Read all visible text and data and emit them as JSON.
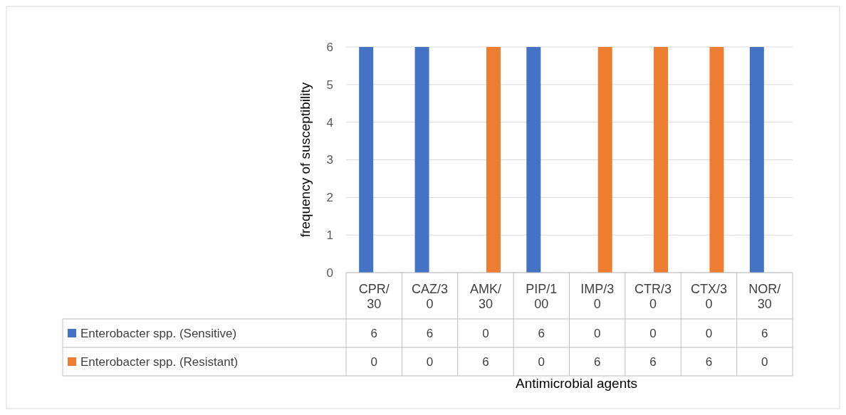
{
  "chart_data": {
    "type": "bar",
    "xlabel": "Antimicrobial agents",
    "ylabel": "frequency of susceptibility",
    "categories": [
      "CPR/30",
      "CAZ/30",
      "AMK/30",
      "PIP/100",
      "IMP/30",
      "CTR/30",
      "CTX/30",
      "NOR/30"
    ],
    "series": [
      {
        "name": "Enterobacter spp. (Sensitive)",
        "color": "#4472c4",
        "values": [
          6,
          6,
          0,
          6,
          0,
          0,
          0,
          6
        ]
      },
      {
        "name": "Enterobacter spp. (Resistant)",
        "color": "#ed7d31",
        "values": [
          0,
          0,
          6,
          0,
          6,
          6,
          6,
          0
        ]
      }
    ],
    "ylim": [
      0,
      6
    ],
    "yticks": [
      0,
      1,
      2,
      3,
      4,
      5,
      6
    ],
    "grid": "y",
    "legend": "bottom",
    "data_labels": true
  }
}
